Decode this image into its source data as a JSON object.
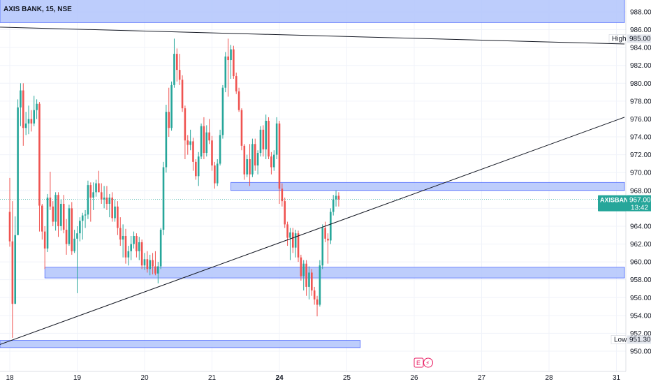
{
  "chart_data": {
    "type": "candlestick",
    "title": "AXIS BANK, 15, NSE",
    "symbol": "AXISBANK",
    "last_price": "967.00",
    "countdown": "13:42",
    "high_label": "High",
    "high_value": "985.00",
    "low_label": "Low",
    "low_value": "951.30",
    "ylim": [
      948.8,
      989.4
    ],
    "y_ticks": [
      950,
      952,
      954,
      956,
      958,
      960,
      962,
      964,
      966,
      968,
      970,
      972,
      974,
      976,
      978,
      980,
      982,
      984,
      986,
      988
    ],
    "y_tick_labels": [
      "950.00",
      "952.00",
      "954.00",
      "956.00",
      "958.00",
      "960.00",
      "962.00",
      "964.00",
      "966.00",
      "968.00",
      "970.00",
      "972.00",
      "974.00",
      "976.00",
      "978.00",
      "980.00",
      "982.00",
      "984.00",
      "986.00",
      "988.00"
    ],
    "x_labels": [
      "18",
      "19",
      "20",
      "21",
      "24",
      "25",
      "26",
      "27",
      "28",
      "31"
    ],
    "x_label_index": [
      0,
      25,
      50,
      75,
      100,
      125,
      150,
      175,
      200,
      225
    ],
    "event_badges": [
      "E",
      "⚡"
    ],
    "colors": {
      "up": "#26a69a",
      "down": "#ef5350",
      "zone_fill": "#b2c4fb",
      "zone_stroke": "#3d5afe",
      "trendline": "#131722"
    },
    "zones": [
      {
        "from_index": -5,
        "to_index": 228,
        "from_price": 986.8,
        "to_price": 989.4
      },
      {
        "from_index": 82,
        "to_index": 228,
        "from_price": 968.0,
        "to_price": 968.9
      },
      {
        "from_index": 13,
        "to_index": 228,
        "from_price": 958.2,
        "to_price": 959.4
      },
      {
        "from_index": -5,
        "to_index": 130,
        "from_price": 950.4,
        "to_price": 951.2
      }
    ],
    "trendlines": [
      {
        "x1": -5,
        "y1": 986.3,
        "x2": 228,
        "y2": 984.4
      },
      {
        "x1": -5,
        "y1": 950.6,
        "x2": 228,
        "y2": 976.2
      }
    ],
    "candles": [
      [
        965.6,
        969.4,
        961.7,
        962.3
      ],
      [
        962.3,
        966.8,
        951.5,
        955.3
      ],
      [
        955.3,
        965.1,
        955.3,
        963.0
      ],
      [
        963.0,
        978.2,
        963.0,
        977.3
      ],
      [
        977.3,
        980.0,
        975.2,
        979.2
      ],
      [
        979.2,
        980.0,
        973.0,
        975.0
      ],
      [
        975.0,
        976.8,
        974.2,
        975.5
      ],
      [
        975.5,
        977.5,
        974.3,
        976.0
      ],
      [
        976.0,
        977.0,
        974.6,
        975.5
      ],
      [
        975.5,
        978.6,
        975.2,
        977.0
      ],
      [
        977.0,
        978.2,
        976.0,
        977.7
      ],
      [
        977.7,
        977.9,
        963.4,
        966.3
      ],
      [
        966.3,
        966.5,
        962.5,
        963.4
      ],
      [
        963.4,
        964.0,
        959.2,
        961.5
      ],
      [
        961.5,
        967.6,
        961.1,
        967.2
      ],
      [
        967.2,
        970.1,
        965.8,
        966.2
      ],
      [
        966.2,
        966.8,
        964.0,
        964.5
      ],
      [
        964.5,
        967.8,
        963.5,
        967.5
      ],
      [
        967.5,
        967.8,
        962.8,
        964.0
      ],
      [
        964.0,
        967.0,
        963.5,
        966.5
      ],
      [
        966.5,
        967.5,
        963.2,
        963.6
      ],
      [
        963.6,
        964.8,
        960.8,
        962.0
      ],
      [
        962.0,
        966.4,
        961.8,
        966.0
      ],
      [
        966.0,
        966.7,
        960.8,
        961.2
      ],
      [
        961.2,
        963.6,
        961.0,
        962.6
      ],
      [
        962.6,
        964.0,
        956.5,
        963.2
      ],
      [
        963.2,
        965.0,
        962.3,
        964.6
      ],
      [
        964.6,
        965.5,
        962.5,
        965.2
      ],
      [
        965.2,
        965.8,
        963.8,
        965.3
      ],
      [
        965.3,
        969.1,
        964.8,
        968.6
      ],
      [
        968.6,
        968.9,
        964.5,
        967.2
      ],
      [
        967.2,
        968.9,
        965.8,
        967.8
      ],
      [
        967.8,
        969.2,
        967.3,
        968.8
      ],
      [
        968.8,
        970.2,
        967.8,
        967.8
      ],
      [
        967.8,
        968.8,
        966.5,
        967.0
      ],
      [
        967.0,
        968.5,
        966.0,
        967.2
      ],
      [
        967.2,
        968.5,
        965.8,
        966.5
      ],
      [
        966.5,
        967.6,
        965.0,
        967.2
      ],
      [
        967.2,
        967.8,
        964.5,
        964.9
      ],
      [
        964.9,
        967.0,
        964.5,
        966.2
      ],
      [
        966.2,
        966.8,
        963.0,
        963.8
      ],
      [
        963.8,
        965.0,
        961.8,
        962.5
      ],
      [
        962.5,
        964.2,
        960.5,
        962.9
      ],
      [
        962.9,
        963.7,
        959.8,
        960.5
      ],
      [
        960.5,
        961.8,
        959.6,
        961.2
      ],
      [
        961.2,
        962.9,
        960.2,
        962.0
      ],
      [
        962.0,
        963.4,
        961.5,
        962.9
      ],
      [
        962.9,
        963.2,
        960.5,
        961.2
      ],
      [
        961.2,
        962.8,
        960.2,
        962.2
      ],
      [
        962.2,
        962.5,
        959.2,
        959.6
      ],
      [
        959.6,
        961.0,
        959.1,
        960.3
      ],
      [
        960.3,
        961.2,
        958.8,
        959.2
      ],
      [
        959.2,
        960.8,
        958.5,
        960.2
      ],
      [
        960.2,
        961.0,
        958.6,
        959.5
      ],
      [
        959.5,
        961.2,
        958.5,
        958.7
      ],
      [
        958.7,
        960.0,
        957.6,
        959.5
      ],
      [
        959.5,
        963.8,
        959.2,
        963.6
      ],
      [
        963.6,
        971.2,
        963.0,
        970.6
      ],
      [
        970.6,
        977.6,
        970.0,
        976.8
      ],
      [
        976.8,
        979.5,
        974.0,
        975.0
      ],
      [
        975.0,
        980.2,
        974.7,
        979.8
      ],
      [
        979.8,
        985.0,
        979.5,
        983.3
      ],
      [
        983.3,
        983.9,
        980.2,
        981.5
      ],
      [
        981.5,
        983.3,
        979.8,
        980.4
      ],
      [
        980.4,
        980.9,
        976.8,
        977.2
      ],
      [
        977.2,
        977.5,
        971.5,
        973.6
      ],
      [
        973.6,
        974.2,
        972.0,
        973.1
      ],
      [
        973.1,
        974.8,
        972.5,
        973.5
      ],
      [
        973.5,
        973.9,
        970.2,
        971.2
      ],
      [
        971.2,
        971.5,
        969.2,
        969.6
      ],
      [
        969.6,
        972.3,
        968.5,
        971.8
      ],
      [
        971.8,
        975.5,
        971.5,
        975.2
      ],
      [
        975.2,
        976.2,
        971.5,
        972.2
      ],
      [
        972.2,
        975.3,
        971.8,
        974.5
      ],
      [
        974.5,
        976.0,
        973.2,
        973.6
      ],
      [
        973.6,
        974.1,
        970.2,
        970.8
      ],
      [
        970.8,
        971.2,
        968.2,
        968.8
      ],
      [
        968.8,
        971.5,
        968.5,
        971.0
      ],
      [
        971.0,
        974.8,
        970.8,
        974.2
      ],
      [
        974.2,
        979.8,
        973.8,
        979.5
      ],
      [
        979.5,
        983.5,
        979.0,
        983.0
      ],
      [
        983.0,
        985.0,
        978.5,
        982.6
      ],
      [
        982.6,
        984.3,
        980.5,
        983.8
      ],
      [
        983.8,
        984.2,
        980.5,
        980.8
      ],
      [
        980.8,
        981.2,
        978.8,
        979.1
      ],
      [
        979.1,
        979.5,
        976.8,
        977.0
      ],
      [
        977.0,
        977.2,
        972.5,
        973.0
      ],
      [
        973.0,
        973.2,
        969.2,
        969.8
      ],
      [
        969.8,
        972.0,
        969.5,
        971.5
      ],
      [
        971.5,
        973.2,
        968.5,
        969.8
      ],
      [
        969.8,
        973.8,
        969.5,
        973.2
      ],
      [
        973.2,
        973.8,
        970.2,
        970.8
      ],
      [
        970.8,
        972.5,
        969.8,
        972.2
      ],
      [
        972.2,
        975.2,
        971.8,
        974.8
      ],
      [
        974.8,
        975.3,
        971.8,
        972.6
      ],
      [
        972.6,
        976.5,
        971.5,
        975.8
      ],
      [
        975.8,
        976.2,
        971.5,
        971.8
      ],
      [
        971.8,
        972.3,
        969.8,
        970.6
      ],
      [
        970.6,
        972.5,
        970.2,
        972.0
      ],
      [
        972.0,
        976.2,
        971.5,
        975.5
      ],
      [
        975.5,
        975.8,
        966.5,
        968.2
      ],
      [
        968.2,
        968.8,
        966.2,
        966.8
      ],
      [
        966.8,
        967.2,
        963.8,
        964.2
      ],
      [
        964.2,
        964.5,
        961.8,
        962.7
      ],
      [
        962.7,
        963.8,
        960.2,
        963.3
      ],
      [
        963.3,
        963.8,
        961.0,
        961.6
      ],
      [
        961.6,
        963.6,
        960.5,
        963.2
      ],
      [
        963.2,
        963.5,
        960.0,
        960.5
      ],
      [
        960.5,
        960.8,
        957.9,
        958.4
      ],
      [
        958.4,
        960.2,
        956.8,
        959.8
      ],
      [
        959.8,
        960.2,
        956.2,
        957.2
      ],
      [
        957.2,
        959.5,
        955.8,
        958.8
      ],
      [
        958.8,
        959.2,
        956.2,
        956.8
      ],
      [
        956.8,
        957.2,
        955.2,
        955.8
      ],
      [
        955.8,
        956.2,
        953.9,
        955.2
      ],
      [
        955.2,
        960.2,
        955.0,
        959.6
      ],
      [
        959.6,
        964.2,
        959.2,
        963.8
      ],
      [
        963.8,
        964.5,
        962.2,
        962.6
      ],
      [
        962.6,
        963.2,
        959.8,
        962.4
      ],
      [
        962.4,
        966.0,
        962.0,
        965.6
      ],
      [
        965.6,
        967.5,
        965.2,
        967.0
      ],
      [
        967.0,
        968.0,
        966.2,
        967.4
      ],
      [
        967.4,
        967.8,
        966.2,
        967.0
      ]
    ]
  }
}
